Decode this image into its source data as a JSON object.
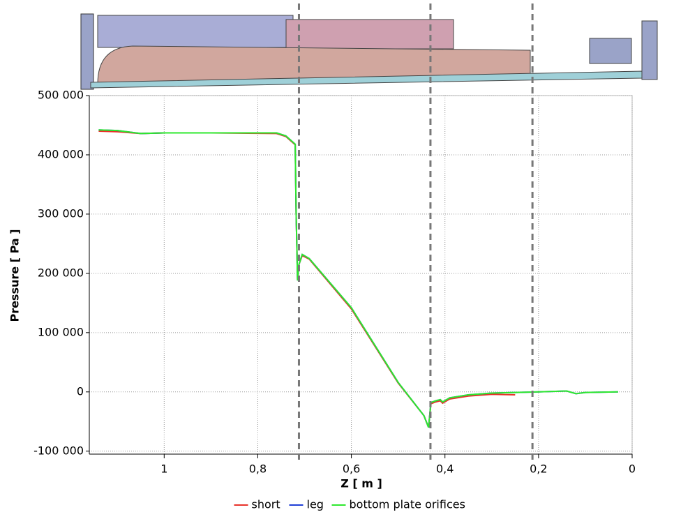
{
  "chart_data": {
    "type": "line",
    "x_label": "Z [ m ]",
    "y_label": "Pressure [ Pa ]",
    "xlim": [
      1.16,
      0
    ],
    "ylim": [
      -105000,
      500000
    ],
    "xticks": [
      {
        "value": 1,
        "label": "1"
      },
      {
        "value": 0.8,
        "label": "0,8"
      },
      {
        "value": 0.6,
        "label": "0,6"
      },
      {
        "value": 0.4,
        "label": "0,4"
      },
      {
        "value": 0.2,
        "label": "0,2"
      },
      0
    ],
    "yticks": [
      {
        "value": 500000,
        "label": "500 000"
      },
      {
        "value": 400000,
        "label": "400 000"
      },
      {
        "value": 300000,
        "label": "300 000"
      },
      {
        "value": 200000,
        "label": "200 000"
      },
      {
        "value": 100000,
        "label": "100 000"
      },
      0,
      {
        "value": -100000,
        "label": "-100 000"
      }
    ],
    "grid": true,
    "legend": "bottom",
    "vlines": [
      0.712,
      0.431,
      0.213
    ],
    "series": [
      {
        "name": "short",
        "color": "#e8322a",
        "x": [
          1.14,
          1.1,
          1.05,
          1.0,
          0.9,
          0.76,
          0.74,
          0.73,
          0.72,
          0.718,
          0.715,
          0.712,
          0.705,
          0.69,
          0.6,
          0.5,
          0.445,
          0.435,
          0.43,
          0.42,
          0.41,
          0.405,
          0.39,
          0.35,
          0.3,
          0.25
        ],
        "values": [
          440000,
          439000,
          436000,
          437000,
          437000,
          436000,
          431000,
          424000,
          417000,
          300000,
          190000,
          215000,
          230000,
          224000,
          140000,
          15000,
          -40000,
          -60000,
          -20000,
          -17000,
          -15000,
          -19000,
          -12000,
          -7000,
          -4000,
          -5000
        ]
      },
      {
        "name": "leg",
        "color": "#1f3fd6",
        "x": [
          1.14,
          1.1,
          1.05,
          1.0,
          0.9,
          0.76,
          0.74,
          0.73,
          0.72,
          0.718,
          0.715,
          0.712,
          0.705,
          0.69,
          0.6,
          0.5,
          0.445,
          0.435,
          0.43,
          0.42,
          0.41,
          0.405,
          0.39,
          0.35,
          0.3,
          0.2,
          0.14,
          0.12,
          0.1,
          0.03
        ],
        "values": [
          442000,
          441000,
          436000,
          437000,
          437000,
          437000,
          432000,
          425000,
          418000,
          300000,
          188000,
          215000,
          232000,
          225000,
          142000,
          16000,
          -40000,
          -60000,
          -18000,
          -15000,
          -13000,
          -17000,
          -10000,
          -5000,
          -2000,
          0,
          1500,
          -3000,
          -1000,
          0
        ]
      },
      {
        "name": "bottom plate orifices",
        "color": "#2ee82e",
        "x": [
          1.14,
          1.1,
          1.05,
          1.0,
          0.9,
          0.76,
          0.74,
          0.73,
          0.72,
          0.718,
          0.715,
          0.712,
          0.705,
          0.69,
          0.6,
          0.5,
          0.445,
          0.435,
          0.43,
          0.42,
          0.41,
          0.405,
          0.39,
          0.35,
          0.3,
          0.2,
          0.14,
          0.12,
          0.1,
          0.03
        ],
        "values": [
          442000,
          441000,
          436000,
          437000,
          437000,
          437000,
          432000,
          425000,
          418000,
          300000,
          188000,
          215000,
          232000,
          225000,
          142000,
          16000,
          -40000,
          -60000,
          -18000,
          -15000,
          -13000,
          -17000,
          -10000,
          -5000,
          -2000,
          0,
          1500,
          -3000,
          -1000,
          0
        ]
      }
    ]
  }
}
